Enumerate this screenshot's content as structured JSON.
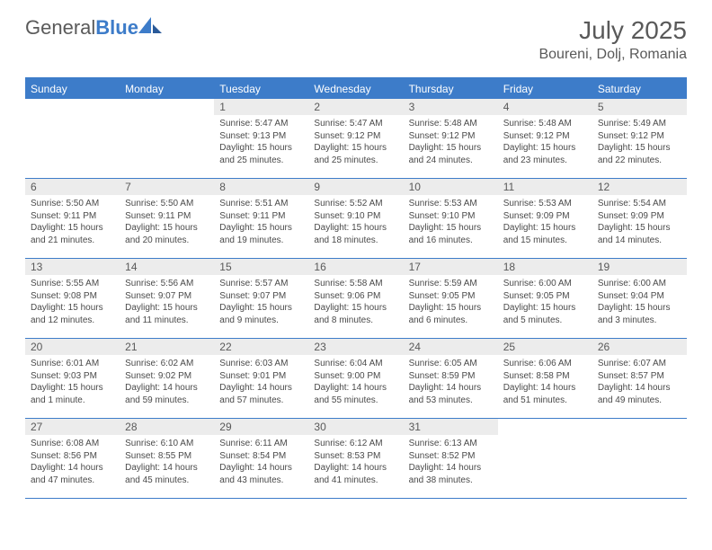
{
  "brand": {
    "part1": "General",
    "part2": "Blue"
  },
  "title": "July 2025",
  "location": "Boureni, Dolj, Romania",
  "colors": {
    "accent": "#3d7cc9",
    "gray_bg": "#ececec",
    "text": "#595959"
  },
  "day_names": [
    "Sunday",
    "Monday",
    "Tuesday",
    "Wednesday",
    "Thursday",
    "Friday",
    "Saturday"
  ],
  "weeks": [
    [
      {
        "n": "",
        "sr": "",
        "ss": "",
        "dl": ""
      },
      {
        "n": "",
        "sr": "",
        "ss": "",
        "dl": ""
      },
      {
        "n": "1",
        "sr": "Sunrise: 5:47 AM",
        "ss": "Sunset: 9:13 PM",
        "dl": "Daylight: 15 hours and 25 minutes."
      },
      {
        "n": "2",
        "sr": "Sunrise: 5:47 AM",
        "ss": "Sunset: 9:12 PM",
        "dl": "Daylight: 15 hours and 25 minutes."
      },
      {
        "n": "3",
        "sr": "Sunrise: 5:48 AM",
        "ss": "Sunset: 9:12 PM",
        "dl": "Daylight: 15 hours and 24 minutes."
      },
      {
        "n": "4",
        "sr": "Sunrise: 5:48 AM",
        "ss": "Sunset: 9:12 PM",
        "dl": "Daylight: 15 hours and 23 minutes."
      },
      {
        "n": "5",
        "sr": "Sunrise: 5:49 AM",
        "ss": "Sunset: 9:12 PM",
        "dl": "Daylight: 15 hours and 22 minutes."
      }
    ],
    [
      {
        "n": "6",
        "sr": "Sunrise: 5:50 AM",
        "ss": "Sunset: 9:11 PM",
        "dl": "Daylight: 15 hours and 21 minutes."
      },
      {
        "n": "7",
        "sr": "Sunrise: 5:50 AM",
        "ss": "Sunset: 9:11 PM",
        "dl": "Daylight: 15 hours and 20 minutes."
      },
      {
        "n": "8",
        "sr": "Sunrise: 5:51 AM",
        "ss": "Sunset: 9:11 PM",
        "dl": "Daylight: 15 hours and 19 minutes."
      },
      {
        "n": "9",
        "sr": "Sunrise: 5:52 AM",
        "ss": "Sunset: 9:10 PM",
        "dl": "Daylight: 15 hours and 18 minutes."
      },
      {
        "n": "10",
        "sr": "Sunrise: 5:53 AM",
        "ss": "Sunset: 9:10 PM",
        "dl": "Daylight: 15 hours and 16 minutes."
      },
      {
        "n": "11",
        "sr": "Sunrise: 5:53 AM",
        "ss": "Sunset: 9:09 PM",
        "dl": "Daylight: 15 hours and 15 minutes."
      },
      {
        "n": "12",
        "sr": "Sunrise: 5:54 AM",
        "ss": "Sunset: 9:09 PM",
        "dl": "Daylight: 15 hours and 14 minutes."
      }
    ],
    [
      {
        "n": "13",
        "sr": "Sunrise: 5:55 AM",
        "ss": "Sunset: 9:08 PM",
        "dl": "Daylight: 15 hours and 12 minutes."
      },
      {
        "n": "14",
        "sr": "Sunrise: 5:56 AM",
        "ss": "Sunset: 9:07 PM",
        "dl": "Daylight: 15 hours and 11 minutes."
      },
      {
        "n": "15",
        "sr": "Sunrise: 5:57 AM",
        "ss": "Sunset: 9:07 PM",
        "dl": "Daylight: 15 hours and 9 minutes."
      },
      {
        "n": "16",
        "sr": "Sunrise: 5:58 AM",
        "ss": "Sunset: 9:06 PM",
        "dl": "Daylight: 15 hours and 8 minutes."
      },
      {
        "n": "17",
        "sr": "Sunrise: 5:59 AM",
        "ss": "Sunset: 9:05 PM",
        "dl": "Daylight: 15 hours and 6 minutes."
      },
      {
        "n": "18",
        "sr": "Sunrise: 6:00 AM",
        "ss": "Sunset: 9:05 PM",
        "dl": "Daylight: 15 hours and 5 minutes."
      },
      {
        "n": "19",
        "sr": "Sunrise: 6:00 AM",
        "ss": "Sunset: 9:04 PM",
        "dl": "Daylight: 15 hours and 3 minutes."
      }
    ],
    [
      {
        "n": "20",
        "sr": "Sunrise: 6:01 AM",
        "ss": "Sunset: 9:03 PM",
        "dl": "Daylight: 15 hours and 1 minute."
      },
      {
        "n": "21",
        "sr": "Sunrise: 6:02 AM",
        "ss": "Sunset: 9:02 PM",
        "dl": "Daylight: 14 hours and 59 minutes."
      },
      {
        "n": "22",
        "sr": "Sunrise: 6:03 AM",
        "ss": "Sunset: 9:01 PM",
        "dl": "Daylight: 14 hours and 57 minutes."
      },
      {
        "n": "23",
        "sr": "Sunrise: 6:04 AM",
        "ss": "Sunset: 9:00 PM",
        "dl": "Daylight: 14 hours and 55 minutes."
      },
      {
        "n": "24",
        "sr": "Sunrise: 6:05 AM",
        "ss": "Sunset: 8:59 PM",
        "dl": "Daylight: 14 hours and 53 minutes."
      },
      {
        "n": "25",
        "sr": "Sunrise: 6:06 AM",
        "ss": "Sunset: 8:58 PM",
        "dl": "Daylight: 14 hours and 51 minutes."
      },
      {
        "n": "26",
        "sr": "Sunrise: 6:07 AM",
        "ss": "Sunset: 8:57 PM",
        "dl": "Daylight: 14 hours and 49 minutes."
      }
    ],
    [
      {
        "n": "27",
        "sr": "Sunrise: 6:08 AM",
        "ss": "Sunset: 8:56 PM",
        "dl": "Daylight: 14 hours and 47 minutes."
      },
      {
        "n": "28",
        "sr": "Sunrise: 6:10 AM",
        "ss": "Sunset: 8:55 PM",
        "dl": "Daylight: 14 hours and 45 minutes."
      },
      {
        "n": "29",
        "sr": "Sunrise: 6:11 AM",
        "ss": "Sunset: 8:54 PM",
        "dl": "Daylight: 14 hours and 43 minutes."
      },
      {
        "n": "30",
        "sr": "Sunrise: 6:12 AM",
        "ss": "Sunset: 8:53 PM",
        "dl": "Daylight: 14 hours and 41 minutes."
      },
      {
        "n": "31",
        "sr": "Sunrise: 6:13 AM",
        "ss": "Sunset: 8:52 PM",
        "dl": "Daylight: 14 hours and 38 minutes."
      },
      {
        "n": "",
        "sr": "",
        "ss": "",
        "dl": ""
      },
      {
        "n": "",
        "sr": "",
        "ss": "",
        "dl": ""
      }
    ]
  ]
}
